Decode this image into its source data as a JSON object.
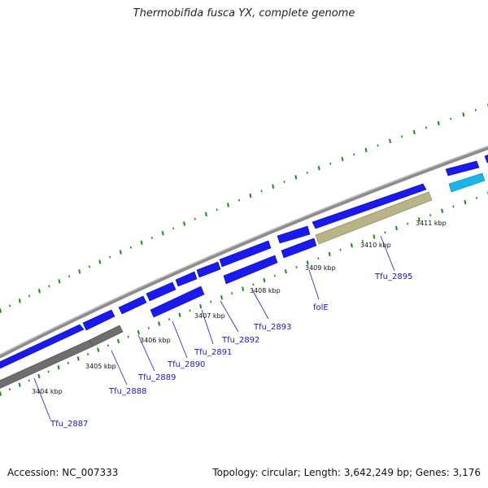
{
  "title": "Thermobifida fusca YX, complete genome",
  "footer": {
    "accession": "Accession: NC_007333",
    "summary": "Topology: circular; Length: 3,642,249 bp; Genes: 3,176"
  },
  "colors": {
    "cds": "#1a1aee",
    "gene_gray": "#6e6e6e",
    "rrna_olive": "#b8b488",
    "trna_cyan": "#19b6e6",
    "backbone": "#8c8c8c",
    "ticks_green": "#1e8a1e",
    "label_blue": "#1a1ab0"
  },
  "genes": [
    {
      "id": "g-tfu2887",
      "label": "Tfu_2887"
    },
    {
      "id": "g-tfu2888",
      "label": "Tfu_2888"
    },
    {
      "id": "g-tfu2889",
      "label": "Tfu_2889"
    },
    {
      "id": "g-tfu2890",
      "label": "Tfu_2890"
    },
    {
      "id": "g-tfu2891",
      "label": "Tfu_2891"
    },
    {
      "id": "g-tfu2892",
      "label": "Tfu_2892"
    },
    {
      "id": "g-tfu2893",
      "label": "Tfu_2893"
    },
    {
      "id": "g-fole",
      "label": "folE"
    },
    {
      "id": "g-tfu2895",
      "label": "Tfu_2895"
    }
  ],
  "kbp_labels": [
    "3404 kbp",
    "3405 kbp",
    "3406 kbp",
    "3407 kbp",
    "3408 kbp",
    "3409 kbp",
    "3410 kbp",
    "3411 kbp"
  ]
}
